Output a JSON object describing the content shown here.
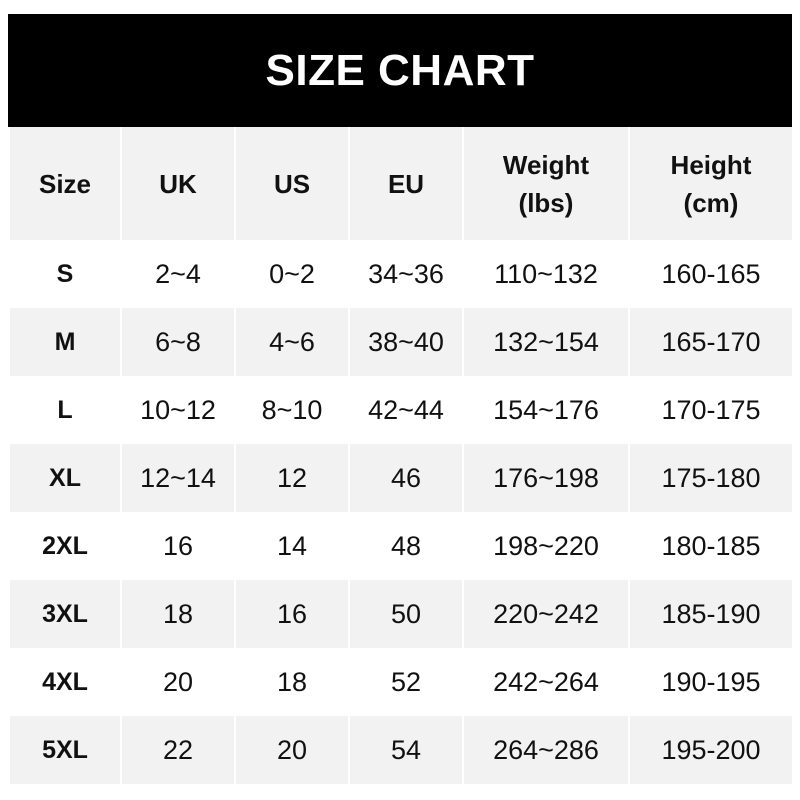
{
  "title": "SIZE CHART",
  "columns": [
    "Size",
    "UK",
    "US",
    "EU",
    "Weight\n(lbs)",
    "Height\n(cm)"
  ],
  "column_lines": [
    [
      "Size"
    ],
    [
      "UK"
    ],
    [
      "US"
    ],
    [
      "EU"
    ],
    [
      "Weight",
      "(lbs)"
    ],
    [
      "Height",
      "(cm)"
    ]
  ],
  "rows": [
    [
      "S",
      "2~4",
      "0~2",
      "34~36",
      "110~132",
      "160-165"
    ],
    [
      "M",
      "6~8",
      "4~6",
      "38~40",
      "132~154",
      "165-170"
    ],
    [
      "L",
      "10~12",
      "8~10",
      "42~44",
      "154~176",
      "170-175"
    ],
    [
      "XL",
      "12~14",
      "12",
      "46",
      "176~198",
      "175-180"
    ],
    [
      "2XL",
      "16",
      "14",
      "48",
      "198~220",
      "180-185"
    ],
    [
      "3XL",
      "18",
      "16",
      "50",
      "220~242",
      "185-190"
    ],
    [
      "4XL",
      "20",
      "18",
      "52",
      "242~264",
      "190-195"
    ],
    [
      "5XL",
      "22",
      "20",
      "54",
      "264~286",
      "195-200"
    ]
  ],
  "colors": {
    "header_bg": "#000000",
    "header_text": "#ffffff",
    "stripe": "#f2f2f2",
    "text": "#111111"
  }
}
